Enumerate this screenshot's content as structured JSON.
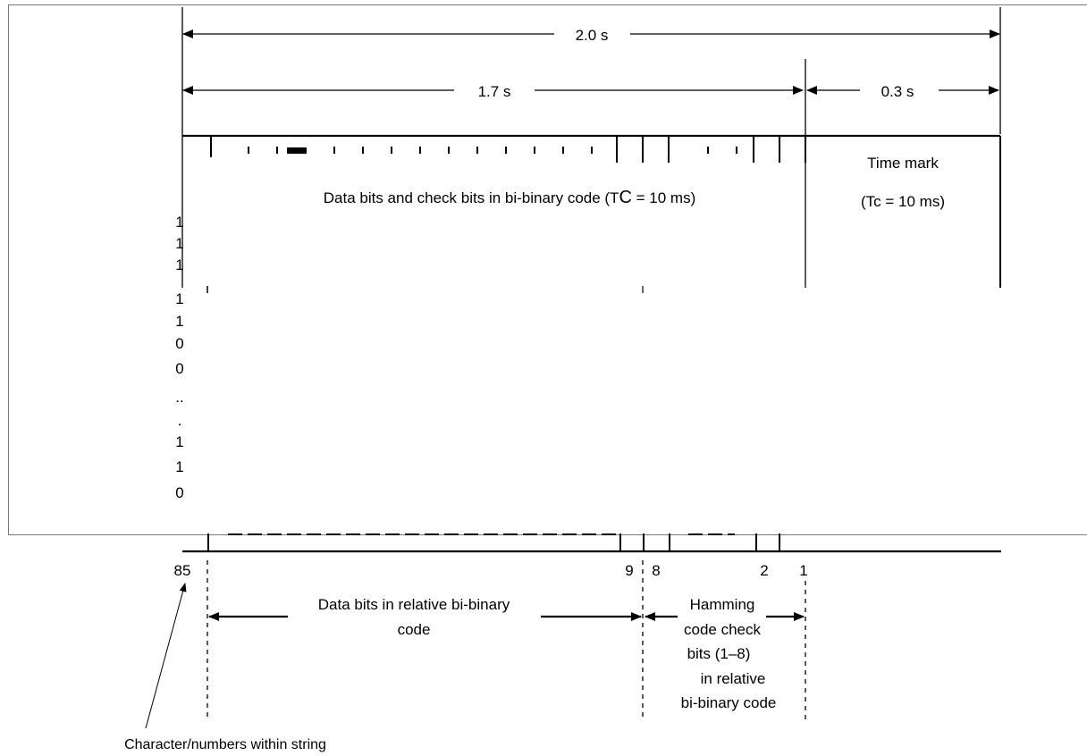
{
  "durations": {
    "total": "2.0 s",
    "data_section": "1.7 s",
    "time_mark_section": "0.3 s"
  },
  "upper_frame": {
    "data_label": "Data bits and check bits in bi-binary code (T",
    "data_label_sub": "C",
    "data_label_end": " = 10 ms)",
    "time_mark_title": "Time mark",
    "time_mark_period": "(Tc = 10 ms)"
  },
  "bit_column": [
    "1",
    "1",
    "1",
    "1",
    "1",
    "0",
    "0",
    "..",
    ".",
    "1",
    "1",
    "0"
  ],
  "lower_frame": {
    "positions": {
      "first": "85",
      "ninth": "9",
      "eighth": "8",
      "second": "2",
      "first_check": "1"
    },
    "data_bits_label": [
      "Data bits in relative bi-binary",
      "code"
    ],
    "hamming_label": [
      "Hamming",
      "code check",
      "bits (1–8)",
      "in relative",
      "bi-binary code"
    ],
    "callout_label": "Character/numbers within string"
  }
}
